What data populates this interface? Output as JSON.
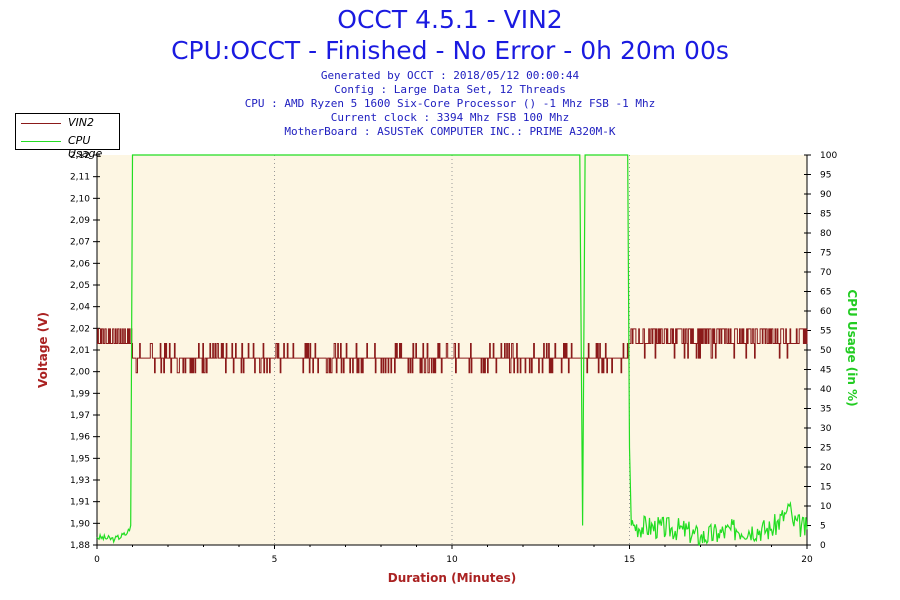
{
  "header": {
    "title": "OCCT 4.5.1 - VIN2",
    "subtitle": "CPU:OCCT - Finished - No Error - 0h 20m 00s",
    "info_lines": [
      "Generated by OCCT : 2018/05/12 00:00:44",
      "Config : Large Data Set, 12 Threads",
      "CPU : AMD Ryzen 5 1600 Six-Core Processor () -1 Mhz FSB -1 Mhz",
      "Current clock : 3394 Mhz FSB 100 Mhz",
      "MotherBoard : ASUSTeK COMPUTER INC.: PRIME A320M-K"
    ]
  },
  "legend": {
    "items": [
      {
        "label": "VIN2",
        "color": "#8b1a1a"
      },
      {
        "label": "CPU Usage",
        "color": "#22dd22"
      }
    ]
  },
  "colors": {
    "plot_bg": "#fdf6e3",
    "vin2": "#8b1a1a",
    "cpu": "#22dd22",
    "left_axis_label": "#aa2222",
    "right_axis_label": "#22cc22",
    "grid": "#999999"
  },
  "chart_data": {
    "type": "line",
    "title": "OCCT 4.5.1 - VIN2",
    "subtitle": "CPU:OCCT - Finished - No Error - 0h 20m 00s",
    "xlabel": "Duration (Minutes)",
    "ylabel_left": "Voltage (V)",
    "ylabel_right": "CPU Usage (in %)",
    "xlim": [
      0,
      20
    ],
    "ylim_left": [
      1.88,
      2.12
    ],
    "ylim_right": [
      0,
      100
    ],
    "x_ticks": [
      "0",
      "5",
      "10",
      "15",
      "20"
    ],
    "y_left_ticks": [
      "1,88",
      "1,90",
      "1,91",
      "1,93",
      "1,95",
      "1,96",
      "1,97",
      "1,99",
      "2,00",
      "2,01",
      "2,02",
      "2,04",
      "2,05",
      "2,06",
      "2,07",
      "2,09",
      "2,10",
      "2,11",
      "2,12"
    ],
    "y_right_ticks": [
      "0",
      "5",
      "10",
      "15",
      "20",
      "25",
      "30",
      "35",
      "40",
      "45",
      "50",
      "55",
      "60",
      "65",
      "70",
      "75",
      "80",
      "85",
      "90",
      "95",
      "100"
    ],
    "grid": "vertical dotted at x ticks",
    "legend_position": "top-left",
    "series": [
      {
        "name": "VIN2",
        "axis": "left",
        "levels_V": [
          1.995,
          2.004,
          2.013
        ],
        "segments": [
          {
            "x_start": 0,
            "x_end": 1.0,
            "typical_V": 2.009,
            "range_V": [
              2.004,
              2.013
            ]
          },
          {
            "x_start": 1.0,
            "x_end": 15.0,
            "typical_V": 1.995,
            "range_V": [
              1.986,
              2.004
            ]
          },
          {
            "x_start": 15.0,
            "x_end": 20,
            "typical_V": 2.009,
            "range_V": [
              1.995,
              2.013
            ]
          }
        ]
      },
      {
        "name": "CPU Usage",
        "axis": "right",
        "x": [
          0,
          0.5,
          0.85,
          0.95,
          1.0,
          1.05,
          13.6,
          13.62,
          13.68,
          13.75,
          14.95,
          15.0,
          15.05,
          16.5,
          17.0,
          17.5,
          18.0,
          19.0,
          19.4,
          19.5,
          19.6,
          20
        ],
        "y": [
          2,
          1.5,
          3,
          5,
          100,
          100,
          100,
          75,
          5,
          100,
          100,
          25,
          5,
          4,
          2,
          3,
          4,
          4,
          8,
          10,
          6,
          4
        ]
      }
    ]
  }
}
